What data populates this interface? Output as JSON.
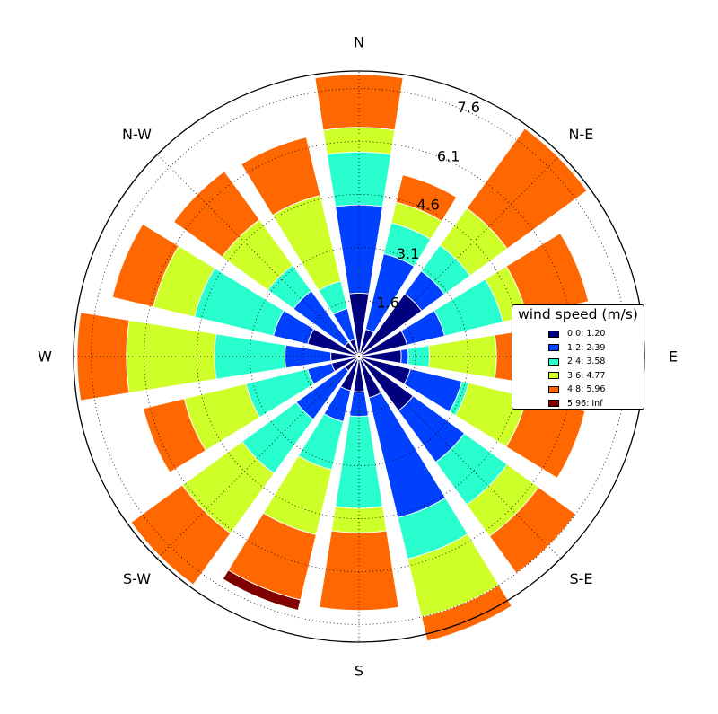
{
  "chart_data": {
    "type": "windrose",
    "directions": [
      "N",
      "N-NE",
      "N-E",
      "E-NE",
      "E",
      "E-SE",
      "S-E",
      "S-SE",
      "S",
      "S-SW",
      "S-W",
      "W-SW",
      "W",
      "W-NW",
      "N-W",
      "N-NW"
    ],
    "direction_labels": [
      "N",
      "N-E",
      "E",
      "S-E",
      "S",
      "S-W",
      "W",
      "N-W"
    ],
    "radial_ticks": [
      "1.6",
      "3.1",
      "4.6",
      "6.1",
      "7.6"
    ],
    "radial_tick_values": [
      1.6,
      3.1,
      4.6,
      6.1,
      7.6
    ],
    "r_max": 8.1,
    "grid": true,
    "legend": {
      "title": "wind speed (m/s)",
      "position": "right",
      "entries": [
        "0.0: 1.20",
        "1.2: 2.39",
        "2.4: 3.58",
        "3.6: 4.77",
        "4.8: 5.96",
        "5.96: Inf"
      ]
    },
    "series": [
      {
        "name": "0.0: 1.20",
        "color": "#000080",
        "values": [
          1.8,
          0.8,
          2.2,
          1.4,
          1.2,
          1.5,
          1.9,
          1.2,
          1.0,
          1.0,
          0.5,
          0.8,
          0.8,
          1.5,
          0.5,
          0.5
        ]
      },
      {
        "name": "1.2: 2.39",
        "color": "#0040ff",
        "values": [
          4.3,
          3.0,
          3.0,
          2.5,
          1.4,
          3.0,
          3.7,
          4.7,
          1.7,
          1.9,
          2.2,
          1.5,
          2.1,
          2.5,
          2.3,
          1.4
        ]
      },
      {
        "name": "2.4: 3.58",
        "color": "#29ffce",
        "values": [
          5.8,
          3.9,
          3.9,
          4.2,
          2.0,
          3.2,
          5.2,
          5.9,
          4.3,
          3.3,
          4.1,
          3.3,
          4.1,
          4.8,
          3.2,
          2.2
        ]
      },
      {
        "name": "3.6: 4.77",
        "color": "#ceff29",
        "values": [
          6.5,
          4.5,
          5.2,
          4.9,
          3.9,
          4.9,
          6.3,
          7.6,
          5.0,
          5.2,
          6.2,
          5.1,
          6.6,
          6.0,
          4.8,
          4.7
        ]
      },
      {
        "name": "4.8: 5.96",
        "color": "#ff6800",
        "values": [
          8.0,
          5.3,
          8.0,
          6.7,
          6.1,
          6.6,
          7.6,
          8.3,
          7.2,
          7.1,
          8.0,
          6.3,
          8.0,
          7.2,
          6.5,
          6.4
        ]
      },
      {
        "name": "5.96: Inf",
        "color": "#800000",
        "values": [
          0,
          0,
          0,
          0,
          0,
          0,
          0,
          0,
          0,
          7.4,
          0,
          0,
          0,
          0,
          0,
          0
        ]
      }
    ]
  }
}
